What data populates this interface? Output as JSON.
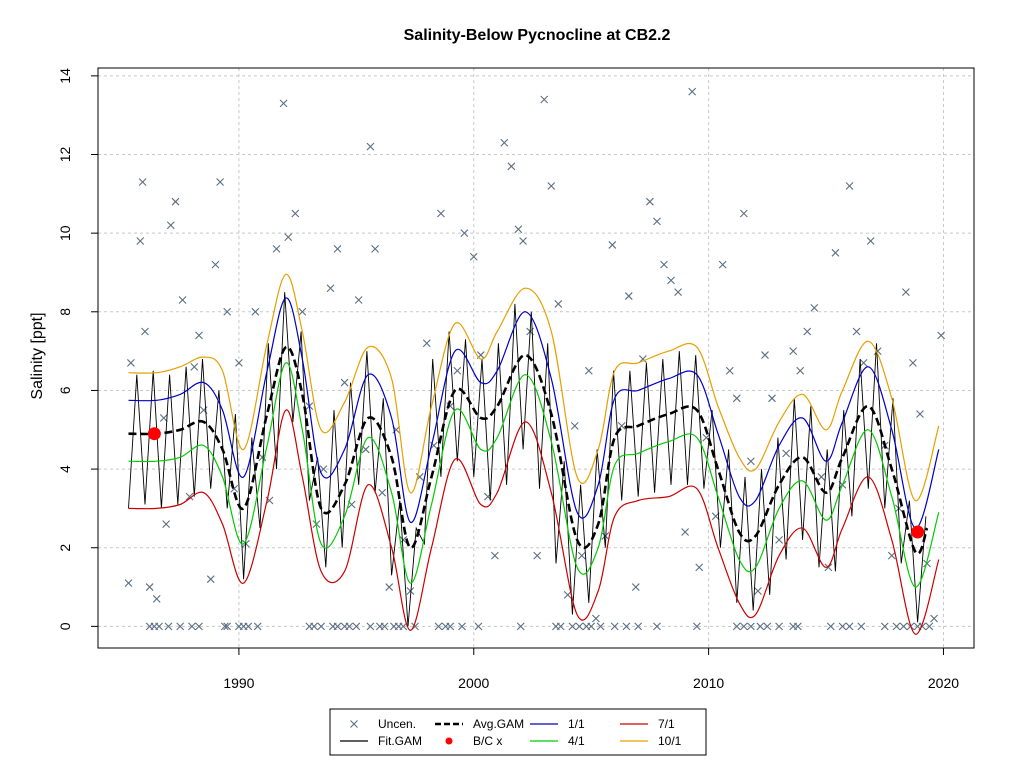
{
  "chart_data": {
    "type": "line",
    "title": "Salinity-Below Pycnocline at CB2.2",
    "xlabel": "",
    "ylabel": "Salinity [ppt]",
    "xlim": [
      1984.0,
      2021.3
    ],
    "ylim": [
      -0.55,
      14.2
    ],
    "x_ticks": [
      1990,
      2000,
      2010,
      2020
    ],
    "y_ticks": [
      0,
      2,
      4,
      6,
      8,
      10,
      12,
      14
    ],
    "grid": true,
    "legend_position": "bottom-center",
    "colors": {
      "uncensored": "#5a6e82",
      "fit_gam": "#000000",
      "avg_gam": "#000000",
      "bc": "#ff0000",
      "p1_1": "#0000cc",
      "p4_1": "#00cc00",
      "p7_1": "#cc0000",
      "p10_1": "#e6a000"
    },
    "legend": [
      {
        "key": "uncensored",
        "label": "Uncen."
      },
      {
        "key": "avg_gam",
        "label": "Avg.GAM"
      },
      {
        "key": "p1_1",
        "label": "1/1"
      },
      {
        "key": "p7_1",
        "label": "7/1"
      },
      {
        "key": "fit_gam",
        "label": "Fit.GAM"
      },
      {
        "key": "bc",
        "label": "B/C x"
      },
      {
        "key": "p4_1",
        "label": "4/1"
      },
      {
        "key": "p10_1",
        "label": "10/1"
      }
    ],
    "series": [
      {
        "key": "p10_1",
        "x": [
          1985.3,
          1986.5,
          1987.5,
          1988.5,
          1989.3,
          1990.2,
          1991.2,
          1992.0,
          1992.7,
          1993.5,
          1994.5,
          1995.5,
          1996.5,
          1997.3,
          1998.2,
          1999.2,
          2000.3,
          2001.0,
          2002.2,
          2003.3,
          2004.4,
          2005.3,
          2006.0,
          2007.0,
          2008.3,
          2009.5,
          2010.4,
          2011.3,
          2012.0,
          2013.0,
          2014.0,
          2015.0,
          2015.7,
          2016.8,
          2017.8,
          2018.8,
          2019.8
        ],
        "y": [
          6.45,
          6.45,
          6.6,
          6.85,
          6.5,
          4.5,
          7.2,
          8.95,
          7.5,
          5.0,
          5.7,
          7.1,
          6.3,
          3.4,
          5.6,
          7.7,
          6.8,
          7.5,
          8.6,
          7.5,
          3.8,
          4.5,
          6.5,
          6.7,
          7.0,
          7.1,
          5.6,
          4.3,
          4.0,
          5.2,
          5.9,
          5.0,
          6.0,
          7.25,
          5.8,
          3.2,
          5.1
        ]
      },
      {
        "key": "p1_1",
        "x": [
          1985.3,
          1986.5,
          1987.5,
          1988.5,
          1989.3,
          1990.2,
          1991.2,
          1992.0,
          1992.7,
          1993.5,
          1994.5,
          1995.5,
          1996.5,
          1997.3,
          1998.2,
          1999.2,
          2000.3,
          2001.0,
          2002.2,
          2003.3,
          2004.4,
          2005.3,
          2006.0,
          2007.0,
          2008.3,
          2009.5,
          2010.4,
          2011.3,
          2012.0,
          2013.0,
          2014.0,
          2015.0,
          2015.7,
          2016.8,
          2017.8,
          2018.8,
          2019.8
        ],
        "y": [
          5.75,
          5.75,
          5.9,
          6.2,
          5.5,
          3.8,
          6.5,
          8.35,
          6.8,
          3.9,
          4.5,
          6.4,
          5.3,
          2.65,
          4.6,
          7.0,
          6.2,
          6.5,
          8.0,
          6.3,
          2.9,
          3.6,
          5.8,
          6.0,
          6.3,
          6.4,
          4.9,
          3.3,
          3.2,
          4.6,
          5.3,
          4.2,
          5.2,
          6.6,
          5.0,
          2.5,
          4.5
        ]
      },
      {
        "key": "avg_gam",
        "x": [
          1985.3,
          1986.5,
          1987.5,
          1988.5,
          1989.3,
          1990.2,
          1991.2,
          1992.0,
          1992.7,
          1993.5,
          1994.5,
          1995.5,
          1996.5,
          1997.3,
          1998.2,
          1999.2,
          2000.3,
          2001.0,
          2002.2,
          2003.3,
          2004.4,
          2005.3,
          2006.0,
          2007.0,
          2008.3,
          2009.5,
          2010.4,
          2011.3,
          2012.0,
          2013.0,
          2014.0,
          2015.0,
          2015.7,
          2016.8,
          2017.8,
          2018.8,
          2019.3
        ],
        "y": [
          4.9,
          4.9,
          5.0,
          5.2,
          4.5,
          3.0,
          5.4,
          7.1,
          5.9,
          3.0,
          3.6,
          5.3,
          4.3,
          2.0,
          3.8,
          6.0,
          5.3,
          5.6,
          6.9,
          5.4,
          2.2,
          2.6,
          4.8,
          5.1,
          5.4,
          5.5,
          4.0,
          2.4,
          2.3,
          3.6,
          4.3,
          3.4,
          4.3,
          5.6,
          4.0,
          1.9,
          2.5
        ]
      },
      {
        "key": "p4_1",
        "x": [
          1985.3,
          1986.5,
          1987.5,
          1988.5,
          1989.3,
          1990.2,
          1991.2,
          1992.0,
          1992.7,
          1993.5,
          1994.5,
          1995.5,
          1996.5,
          1997.3,
          1998.2,
          1999.2,
          2000.3,
          2001.0,
          2002.2,
          2003.3,
          2004.4,
          2005.3,
          2006.0,
          2007.0,
          2008.3,
          2009.5,
          2010.4,
          2011.3,
          2012.0,
          2013.0,
          2014.0,
          2015.0,
          2015.7,
          2016.8,
          2017.8,
          2018.8,
          2019.8
        ],
        "y": [
          4.2,
          4.2,
          4.3,
          4.6,
          3.8,
          2.1,
          4.6,
          6.7,
          5.0,
          2.1,
          2.8,
          4.8,
          3.4,
          1.1,
          3.1,
          5.5,
          4.5,
          4.8,
          6.4,
          4.7,
          1.5,
          2.0,
          4.1,
          4.4,
          4.7,
          4.8,
          3.3,
          1.7,
          1.5,
          3.0,
          3.7,
          2.7,
          3.6,
          5.0,
          3.3,
          1.0,
          2.9
        ]
      },
      {
        "key": "p7_1",
        "x": [
          1985.3,
          1986.5,
          1987.5,
          1988.5,
          1989.3,
          1990.2,
          1991.2,
          1992.0,
          1992.7,
          1993.5,
          1994.5,
          1995.5,
          1996.5,
          1997.3,
          1998.2,
          1999.2,
          2000.3,
          2001.0,
          2002.2,
          2003.3,
          2004.4,
          2005.3,
          2006.0,
          2007.0,
          2008.3,
          2009.5,
          2010.4,
          2011.3,
          2012.0,
          2013.0,
          2014.0,
          2015.0,
          2015.7,
          2016.8,
          2017.8,
          2018.8,
          2019.8
        ],
        "y": [
          3.0,
          3.0,
          3.1,
          3.4,
          2.6,
          1.1,
          3.2,
          5.5,
          3.8,
          1.4,
          1.4,
          3.6,
          2.0,
          -0.1,
          2.0,
          4.25,
          3.1,
          3.4,
          5.2,
          3.4,
          0.3,
          0.9,
          2.8,
          3.2,
          3.3,
          3.5,
          2.0,
          0.6,
          0.3,
          1.8,
          2.5,
          1.5,
          2.5,
          3.8,
          2.2,
          -0.2,
          1.7
        ]
      }
    ],
    "fit_gam": {
      "x": [
        1985.3,
        1985.65,
        1986.0,
        1986.35,
        1986.7,
        1987.05,
        1987.4,
        1987.75,
        1988.1,
        1988.45,
        1988.8,
        1989.15,
        1989.5,
        1989.85,
        1990.2,
        1990.55,
        1990.9,
        1991.25,
        1991.6,
        1991.95,
        1992.3,
        1992.65,
        1993.0,
        1993.35,
        1993.7,
        1994.05,
        1994.4,
        1994.75,
        1995.1,
        1995.45,
        1995.8,
        1996.15,
        1996.5,
        1996.85,
        1997.2,
        1997.55,
        1997.9,
        1998.25,
        1998.6,
        1998.95,
        1999.3,
        1999.65,
        2000.0,
        2000.35,
        2000.7,
        2001.05,
        2001.4,
        2001.75,
        2002.1,
        2002.45,
        2002.8,
        2003.15,
        2003.5,
        2003.85,
        2004.2,
        2004.55,
        2004.9,
        2005.25,
        2005.6,
        2005.95,
        2006.3,
        2006.65,
        2007.0,
        2007.35,
        2007.7,
        2008.05,
        2008.4,
        2008.75,
        2009.1,
        2009.45,
        2009.8,
        2010.15,
        2010.5,
        2010.85,
        2011.2,
        2011.55,
        2011.9,
        2012.25,
        2012.6,
        2012.95,
        2013.3,
        2013.65,
        2014.0,
        2014.35,
        2014.7,
        2015.05,
        2015.4,
        2015.75,
        2016.1,
        2016.45,
        2016.8,
        2017.15,
        2017.5,
        2017.85,
        2018.2,
        2018.55,
        2018.9,
        2019.25
      ],
      "y": [
        3.0,
        6.4,
        3.1,
        6.5,
        3.0,
        6.4,
        3.1,
        6.6,
        3.3,
        6.8,
        3.5,
        6.0,
        3.0,
        5.4,
        1.2,
        4.8,
        2.5,
        7.2,
        4.0,
        8.5,
        5.2,
        7.5,
        3.2,
        4.3,
        1.5,
        5.5,
        2.0,
        6.2,
        3.6,
        7.0,
        3.4,
        5.8,
        1.3,
        3.2,
        0.0,
        2.5,
        2.1,
        6.8,
        3.8,
        7.5,
        4.2,
        7.3,
        3.8,
        6.8,
        3.2,
        7.2,
        3.6,
        8.2,
        4.5,
        8.0,
        3.5,
        7.2,
        1.6,
        4.2,
        0.3,
        3.6,
        0.6,
        4.5,
        2.0,
        6.5,
        3.2,
        6.5,
        3.3,
        6.7,
        3.4,
        6.8,
        3.6,
        7.0,
        3.6,
        6.9,
        3.5,
        5.5,
        2.0,
        4.5,
        0.6,
        3.8,
        0.4,
        4.0,
        0.8,
        4.8,
        1.7,
        5.8,
        2.2,
        5.6,
        1.5,
        4.5,
        1.4,
        5.5,
        2.8,
        6.8,
        3.5,
        7.2,
        3.0,
        5.8,
        1.6,
        3.2,
        0.1,
        2.8
      ]
    },
    "bc_points": [
      {
        "x": 1986.4,
        "y": 4.9
      },
      {
        "x": 2018.9,
        "y": 2.4
      }
    ],
    "uncensored": {
      "x": [
        1985.3,
        1985.4,
        1985.8,
        1985.9,
        1986.0,
        1986.2,
        1986.5,
        1986.8,
        1986.9,
        1987.1,
        1987.3,
        1987.6,
        1987.9,
        1988.1,
        1988.3,
        1988.5,
        1988.8,
        1989.0,
        1989.2,
        1989.5,
        1989.8,
        1990.0,
        1990.3,
        1990.7,
        1991.0,
        1991.3,
        1991.6,
        1991.9,
        1992.1,
        1992.4,
        1992.7,
        1993.0,
        1993.3,
        1993.6,
        1993.9,
        1994.2,
        1994.5,
        1994.8,
        1995.1,
        1995.4,
        1995.6,
        1995.8,
        1996.1,
        1996.4,
        1996.7,
        1997.0,
        1997.3,
        1997.7,
        1998.0,
        1998.3,
        1998.6,
        1999.0,
        1999.3,
        1999.6,
        2000.0,
        2000.3,
        2000.6,
        2000.9,
        2001.3,
        2001.6,
        2001.9,
        2002.1,
        2002.4,
        2002.7,
        2003.0,
        2003.3,
        2003.6,
        2004.0,
        2004.3,
        2004.6,
        2004.9,
        2005.2,
        2005.6,
        2005.9,
        2006.3,
        2006.6,
        2006.9,
        2007.2,
        2007.5,
        2007.8,
        2008.1,
        2008.4,
        2008.7,
        2009.0,
        2009.3,
        2009.6,
        2009.9,
        2010.3,
        2010.6,
        2010.9,
        2011.2,
        2011.5,
        2011.8,
        2012.1,
        2012.4,
        2012.7,
        2013.0,
        2013.3,
        2013.6,
        2013.9,
        2014.2,
        2014.5,
        2014.8,
        2015.1,
        2015.4,
        2015.7,
        2016.0,
        2016.3,
        2016.6,
        2016.9,
        2017.2,
        2017.5,
        2017.8,
        2018.1,
        2018.4,
        2018.7,
        2019.0,
        2019.3,
        2019.6,
        2019.9
      ],
      "y": [
        1.1,
        6.7,
        9.8,
        11.3,
        7.5,
        1.0,
        0.7,
        5.3,
        2.6,
        10.2,
        10.8,
        8.3,
        3.3,
        6.6,
        7.4,
        5.5,
        1.2,
        9.2,
        11.3,
        8.0,
        3.5,
        6.7,
        2.1,
        8.0,
        4.3,
        3.2,
        9.6,
        13.3,
        9.9,
        10.5,
        8.0,
        5.6,
        2.6,
        4.0,
        8.6,
        9.6,
        6.2,
        3.1,
        8.3,
        4.5,
        12.2,
        9.6,
        3.4,
        1.0,
        5.0,
        2.2,
        0.9,
        3.8,
        7.2,
        4.6,
        10.5,
        5.6,
        6.5,
        10.0,
        9.4,
        6.9,
        3.3,
        1.8,
        12.3,
        11.7,
        10.1,
        9.8,
        7.5,
        1.8,
        13.4,
        11.2,
        8.2,
        0.8,
        5.1,
        1.8,
        6.5,
        0.2,
        2.3,
        9.7,
        5.1,
        8.4,
        1.0,
        6.8,
        10.8,
        10.3,
        9.2,
        8.8,
        8.5,
        2.4,
        13.6,
        1.5,
        4.8,
        2.8,
        9.2,
        6.5,
        5.8,
        10.5,
        4.2,
        0.9,
        6.9,
        5.8,
        2.2,
        4.4,
        7.0,
        6.5,
        7.5,
        8.1,
        3.8,
        1.5,
        9.5,
        3.6,
        11.2,
        7.5,
        6.7,
        9.8,
        7.0,
        4.6,
        1.8,
        3.0,
        8.5,
        6.7,
        5.4,
        1.6,
        0.2,
        7.4
      ]
    },
    "censored": {
      "x": [
        1986.2,
        1986.4,
        1986.6,
        1987.0,
        1987.5,
        1988.0,
        1988.3,
        1989.4,
        1989.5,
        1990.0,
        1990.2,
        1990.4,
        1990.8,
        1993.0,
        1993.2,
        1993.5,
        1994.0,
        1994.2,
        1994.5,
        1994.7,
        1995.0,
        1995.6,
        1996.0,
        1996.2,
        1996.6,
        1996.8,
        1997.0,
        1997.5,
        1998.5,
        1998.8,
        1999.0,
        1999.5,
        2000.2,
        2002.0,
        2003.5,
        2003.7,
        2004.2,
        2004.5,
        2004.8,
        2005.0,
        2005.4,
        2006.0,
        2006.5,
        2007.0,
        2007.8,
        2009.5,
        2011.2,
        2011.5,
        2011.8,
        2012.2,
        2012.5,
        2013.0,
        2013.6,
        2013.8,
        2015.2,
        2015.7,
        2016.0,
        2016.5,
        2017.5,
        2018.0,
        2018.3,
        2018.6,
        2018.9,
        2019.1,
        2019.4
      ],
      "y": 0
    }
  }
}
